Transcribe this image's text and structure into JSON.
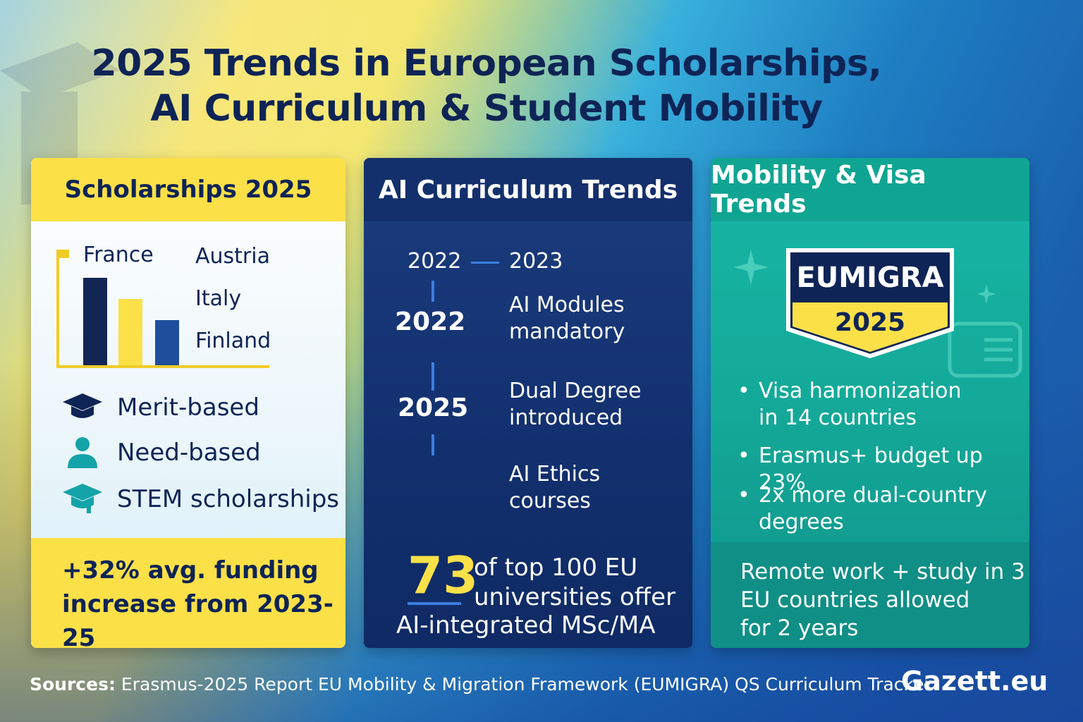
{
  "title": {
    "line1": "2025 Trends in European Scholarships,",
    "line2": "AI Curriculum & Student Mobility"
  },
  "scholarships": {
    "heading": "Scholarships 2025",
    "countries_left": "France",
    "countries_right": [
      "Austria",
      "Italy",
      "Finland"
    ],
    "bar_colors": [
      "#122555",
      "#fbe048",
      "#1f4f9c"
    ],
    "types": [
      {
        "icon": "graduation-cap-icon",
        "label": "Merit-based"
      },
      {
        "icon": "person-icon",
        "label": "Need-based"
      },
      {
        "icon": "stem-cap-icon",
        "label": "STEM scholarships"
      }
    ],
    "footer_line1": "+32% avg. funding",
    "footer_line2": "increase from 2023-25"
  },
  "ai_curriculum": {
    "heading": "AI Curriculum Trends",
    "years_top_left": "2022",
    "years_top_right": "2023",
    "timeline": [
      {
        "year": "2022",
        "line1": "AI Modules",
        "line2": "mandatory"
      },
      {
        "year": "2025",
        "line1": "Dual Degree",
        "line2": "introduced"
      },
      {
        "year": "",
        "line1": "AI Ethics",
        "line2": "courses"
      }
    ],
    "stat_number": "73",
    "stat_line1": "of top 100 EU",
    "stat_line2": "universities offer",
    "stat_line3": "AI-integrated MSc/MA"
  },
  "mobility": {
    "heading": "Mobility & Visa Trends",
    "badge_name": "EUMIGRA",
    "badge_year": "2025",
    "bullets": [
      {
        "line1": "Visa harmonization",
        "line2": "in 14 countries"
      },
      {
        "line1": "Erasmus+ budget up 23%",
        "line2": ""
      },
      {
        "line1": "2x more dual-country",
        "line2": "degrees"
      }
    ],
    "footer_line1": "Remote work + study in 3",
    "footer_line2": "EU countries allowed",
    "footer_line3": "for 2 years"
  },
  "sources": {
    "label": "Sources:",
    "text": "Erasmus-2025 Report  EU Mobility & Migration Framework (EUMIGRA)  QS Curriculum Tracker"
  },
  "brand": "Gazett.eu",
  "colors": {
    "navy": "#0e2456",
    "yellow": "#fbe048",
    "teal": "#14a999",
    "blue": "#13306c"
  }
}
